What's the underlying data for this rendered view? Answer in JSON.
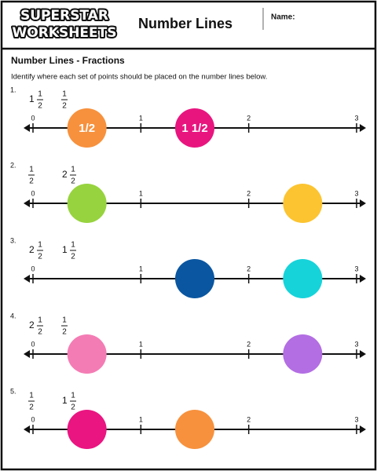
{
  "header": {
    "logo_top": "SUPERSTAR",
    "logo_bottom": "WORKSHEETS",
    "title": "Number Lines",
    "name_label": "Name:"
  },
  "section_title": "Number Lines - Fractions",
  "instructions": "Identify where each set of points should be placed on the number lines below.",
  "number_line_ticks": [
    0,
    1,
    2,
    3
  ],
  "problems": [
    {
      "label": "1.",
      "fractions": [
        {
          "whole": "1",
          "numerator": "1",
          "denominator": "2"
        },
        {
          "numerator": "1",
          "denominator": "2"
        }
      ],
      "points": [
        {
          "value": 0.5,
          "color": "#f7913d",
          "label": "1/2"
        },
        {
          "value": 1.5,
          "color": "#e8157f",
          "label": "1 1/2"
        }
      ]
    },
    {
      "label": "2.",
      "fractions": [
        {
          "numerator": "1",
          "denominator": "2"
        },
        {
          "whole": "2",
          "numerator": "1",
          "denominator": "2"
        }
      ],
      "points": [
        {
          "value": 0.5,
          "color": "#97d33e"
        },
        {
          "value": 2.5,
          "color": "#fcc431"
        }
      ]
    },
    {
      "label": "3.",
      "fractions": [
        {
          "whole": "2",
          "numerator": "1",
          "denominator": "2"
        },
        {
          "whole": "1",
          "numerator": "1",
          "denominator": "2"
        }
      ],
      "points": [
        {
          "value": 1.5,
          "color": "#0a56a1"
        },
        {
          "value": 2.5,
          "color": "#16d3da"
        }
      ]
    },
    {
      "label": "4.",
      "fractions": [
        {
          "whole": "2",
          "numerator": "1",
          "denominator": "2"
        },
        {
          "numerator": "1",
          "denominator": "2"
        }
      ],
      "points": [
        {
          "value": 0.5,
          "color": "#f47cb4"
        },
        {
          "value": 2.5,
          "color": "#b36ee3"
        }
      ]
    },
    {
      "label": "5.",
      "fractions": [
        {
          "numerator": "1",
          "denominator": "2"
        },
        {
          "whole": "1",
          "numerator": "1",
          "denominator": "2"
        }
      ],
      "points": [
        {
          "value": 0.5,
          "color": "#ea1581"
        },
        {
          "value": 1.5,
          "color": "#f7913d"
        }
      ]
    }
  ]
}
